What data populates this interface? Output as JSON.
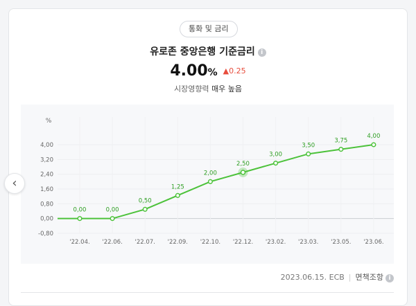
{
  "header": {
    "category_chip": "통화 및 금리",
    "title": "유로존 중앙은행 기준금리",
    "info_icon": "i"
  },
  "rate": {
    "value": "4.00",
    "unit": "%",
    "change": "0.25",
    "change_direction": "up",
    "impact_label": "시장영향력",
    "impact_value": "매우 높음"
  },
  "colors": {
    "line": "#4cc23a",
    "label": "#2e9e22",
    "up": "#e74c3c"
  },
  "chart_data": {
    "type": "line",
    "y_unit_label": "%",
    "ylim": [
      -0.8,
      4.0
    ],
    "y_ticks": [
      "-0,80",
      "0,00",
      "0,80",
      "1,60",
      "2,40",
      "3,20",
      "4,00"
    ],
    "categories": [
      "'22.04.",
      "'22.06.",
      "'22.07.",
      "'22.09.",
      "'22.10.",
      "'22.12.",
      "'23.02.",
      "'23.03.",
      "'23.05.",
      "'23.06."
    ],
    "values": [
      0.0,
      0.0,
      0.5,
      1.25,
      2.0,
      2.5,
      3.0,
      3.5,
      3.75,
      4.0
    ],
    "data_labels": [
      "0,00",
      "0,00",
      "0,50",
      "1,25",
      "2,00",
      "2,50",
      "3,00",
      "3,50",
      "3,75",
      "4,00"
    ],
    "highlight_index": 5,
    "grid": true
  },
  "footer": {
    "date_source": "2023.06.15. ECB",
    "disclaimer": "면책조항",
    "info_icon": "i"
  },
  "nav": {
    "prev_icon": "‹"
  }
}
